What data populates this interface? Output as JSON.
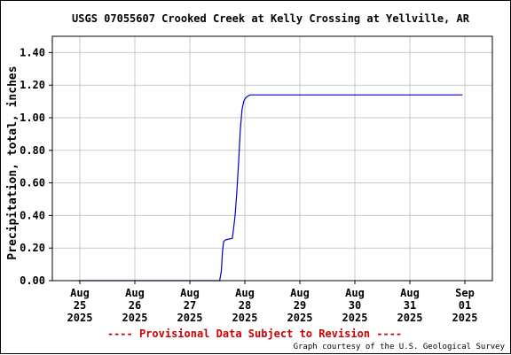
{
  "chart_data": {
    "type": "line",
    "title": "USGS 07055607 Crooked Creek at Kelly Crossing at Yellville, AR",
    "xlabel": "",
    "ylabel": "Precipitation, total, inches",
    "ylim": [
      0,
      1.5
    ],
    "yticks": [
      "0.00",
      "0.20",
      "0.40",
      "0.60",
      "0.80",
      "1.00",
      "1.20",
      "1.40"
    ],
    "xlim": [
      "2025-08-25T00:00",
      "2025-09-01T00:00"
    ],
    "xticks": [
      {
        "line1": "Aug",
        "line2": "25",
        "line3": "2025"
      },
      {
        "line1": "Aug",
        "line2": "26",
        "line3": "2025"
      },
      {
        "line1": "Aug",
        "line2": "27",
        "line3": "2025"
      },
      {
        "line1": "Aug",
        "line2": "28",
        "line3": "2025"
      },
      {
        "line1": "Aug",
        "line2": "29",
        "line3": "2025"
      },
      {
        "line1": "Aug",
        "line2": "30",
        "line3": "2025"
      },
      {
        "line1": "Aug",
        "line2": "31",
        "line3": "2025"
      },
      {
        "line1": "Sep",
        "line2": "01",
        "line3": "2025"
      }
    ],
    "grid": true,
    "series": [
      {
        "color": "#0000cc",
        "x": [
          "2025-08-24T23:00",
          "2025-08-27T13:00",
          "2025-08-27T13:45",
          "2025-08-27T14:15",
          "2025-08-27T14:45",
          "2025-08-27T15:30",
          "2025-08-27T18:30",
          "2025-08-27T19:00",
          "2025-08-27T19:45",
          "2025-08-27T20:30",
          "2025-08-27T21:15",
          "2025-08-27T22:00",
          "2025-08-27T22:45",
          "2025-08-27T23:30",
          "2025-08-28T00:15",
          "2025-08-28T01:00",
          "2025-08-28T02:15",
          "2025-08-28T03:45",
          "2025-08-31T23:00"
        ],
        "values": [
          0.0,
          0.0,
          0.06,
          0.18,
          0.24,
          0.25,
          0.26,
          0.31,
          0.4,
          0.55,
          0.72,
          0.92,
          1.05,
          1.1,
          1.12,
          1.13,
          1.14,
          1.14,
          1.14
        ]
      }
    ]
  },
  "footer": {
    "provisional": "---- Provisional Data Subject to Revision ----",
    "credit": "Graph courtesy of the U.S. Geological Survey"
  }
}
